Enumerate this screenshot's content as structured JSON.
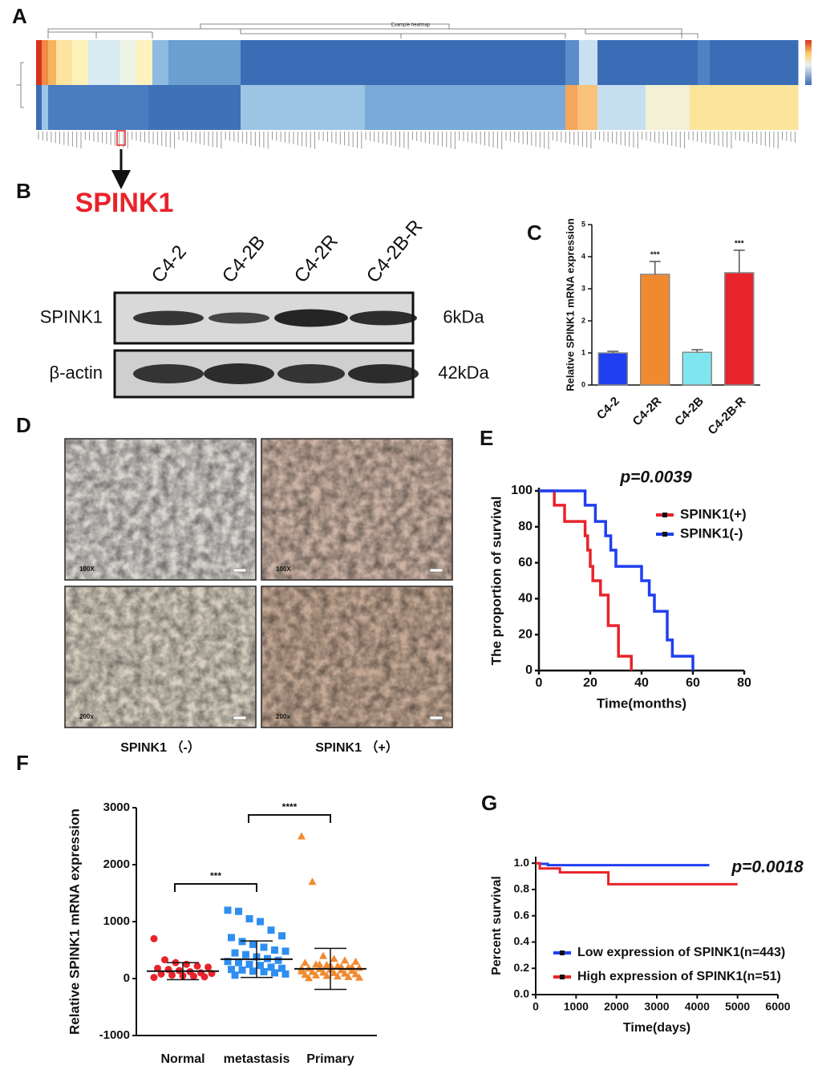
{
  "panel_labels": [
    "A",
    "B",
    "C",
    "D",
    "E",
    "F",
    "G"
  ],
  "heatmap": {
    "title": "Example heatmap",
    "highlight": "SPINK1"
  },
  "blot": {
    "lanes": [
      "C4-2",
      "C4-2B",
      "C4-2R",
      "C4-2B-R"
    ],
    "rows": [
      {
        "name": "SPINK1",
        "size": "6kDa"
      },
      {
        "name": "β-actin",
        "size": "42kDa"
      }
    ]
  },
  "ihc": {
    "magnifications": [
      "100X",
      "100X",
      "200x",
      "200x"
    ],
    "captions": [
      "SPINK1 （-）",
      "SPINK1 （+）"
    ]
  },
  "chart_data": [
    {
      "type": "bar",
      "ylabel": "Relative SPINK1 mRNA expression",
      "categories": [
        "C4-2",
        "C4-2R",
        "C4-2B",
        "C4-2B-R"
      ],
      "values": [
        1,
        3.45,
        1.02,
        3.5
      ],
      "errors": [
        0.05,
        0.4,
        0.08,
        0.7
      ],
      "colors": [
        "#1f3ff0",
        "#f08a30",
        "#7fe6f0",
        "#e8232a"
      ],
      "significance": [
        {
          "category": "C4-2R",
          "label": "***"
        },
        {
          "category": "C4-2B-R",
          "label": "***"
        }
      ],
      "ylim": [
        0,
        5
      ],
      "yticks": [
        0,
        1,
        2,
        3,
        4,
        5
      ]
    },
    {
      "type": "line",
      "annotation": "p=0.0039",
      "xlabel": "Time(months)",
      "ylabel": "The proportion of survival",
      "xlim": [
        0,
        80
      ],
      "xticks": [
        0,
        20,
        40,
        60,
        80
      ],
      "ylim": [
        0,
        100
      ],
      "yticks": [
        0,
        20,
        40,
        60,
        80,
        100
      ],
      "legend": "upper right",
      "series": [
        {
          "name": "SPINK1(+)",
          "color": "#e8232a",
          "x": [
            0,
            6,
            6,
            10,
            10,
            18,
            18,
            19,
            19,
            20,
            20,
            21,
            21,
            24,
            24,
            27,
            27,
            31,
            31,
            36,
            36
          ],
          "values": [
            100,
            100,
            92,
            92,
            83,
            83,
            75,
            75,
            67,
            67,
            58,
            58,
            50,
            50,
            42,
            42,
            25,
            25,
            8,
            8,
            0
          ]
        },
        {
          "name": "SPINK1(-)",
          "color": "#1f3ff0",
          "x": [
            0,
            18,
            18,
            22,
            22,
            26,
            26,
            28,
            28,
            30,
            30,
            40,
            40,
            43,
            43,
            45,
            45,
            50,
            50,
            52,
            52,
            60,
            60
          ],
          "values": [
            100,
            100,
            92,
            92,
            83,
            83,
            75,
            75,
            67,
            67,
            58,
            58,
            50,
            50,
            42,
            42,
            33,
            33,
            17,
            17,
            8,
            8,
            0
          ]
        }
      ]
    },
    {
      "type": "dot",
      "ylabel": "Relative SPINK1 mRNA expression",
      "categories": [
        "Normal",
        "metastasis",
        "Primary"
      ],
      "colors": [
        "#e8232a",
        "#2f8ff0",
        "#f08a30"
      ],
      "markers": [
        "circle",
        "square",
        "triangle"
      ],
      "values": [
        [
          700,
          330,
          280,
          250,
          220,
          200,
          180,
          160,
          140,
          120,
          100,
          90,
          80,
          60,
          50,
          40,
          30,
          20
        ],
        [
          1200,
          1180,
          1050,
          1000,
          850,
          750,
          720,
          650,
          600,
          550,
          500,
          480,
          450,
          420,
          380,
          350,
          320,
          300,
          280,
          250,
          230,
          200,
          180,
          160,
          150,
          130,
          120,
          100,
          80,
          60
        ],
        [
          2500,
          1700,
          400,
          350,
          320,
          300,
          280,
          250,
          240,
          220,
          200,
          190,
          180,
          170,
          160,
          150,
          140,
          130,
          120,
          110,
          100,
          90,
          80,
          70,
          60,
          50,
          40,
          30,
          20,
          10,
          250,
          230,
          210,
          200,
          180
        ]
      ],
      "means": [
        130,
        340,
        170
      ],
      "sds": [
        150,
        320,
        360
      ],
      "brackets": [
        {
          "from": "Normal",
          "to": "metastasis",
          "label": "***"
        },
        {
          "from": "metastasis",
          "to": "Primary",
          "label": "****"
        }
      ],
      "ylim": [
        -1000,
        3000
      ],
      "yticks": [
        -1000,
        0,
        1000,
        2000,
        3000
      ]
    },
    {
      "type": "line",
      "annotation": "p=0.0018",
      "xlabel": "Time(days)",
      "ylabel": "Percent survival",
      "xlim": [
        0,
        6000
      ],
      "xticks": [
        0,
        1000,
        2000,
        3000,
        4000,
        5000,
        6000
      ],
      "ylim": [
        0,
        1.05
      ],
      "yticks": [
        {
          "value": 0,
          "label": "0.0"
        },
        0.2,
        0.4,
        0.6,
        0.8,
        {
          "value": 1,
          "label": "1.0"
        }
      ],
      "legend": "lower left",
      "series": [
        {
          "name": "Low expression of SPINK1(n=443)",
          "color": "#1f3ff0",
          "x": [
            0,
            100,
            100,
            300,
            300,
            4300
          ],
          "values": [
            1,
            1,
            0.995,
            0.995,
            0.985,
            0.985
          ]
        },
        {
          "name": "High expression of SPINK1(n=51)",
          "color": "#e8232a",
          "x": [
            0,
            100,
            100,
            600,
            600,
            1800,
            1800,
            5000
          ],
          "values": [
            1,
            1,
            0.96,
            0.96,
            0.93,
            0.93,
            0.84,
            0.84
          ]
        }
      ]
    }
  ]
}
